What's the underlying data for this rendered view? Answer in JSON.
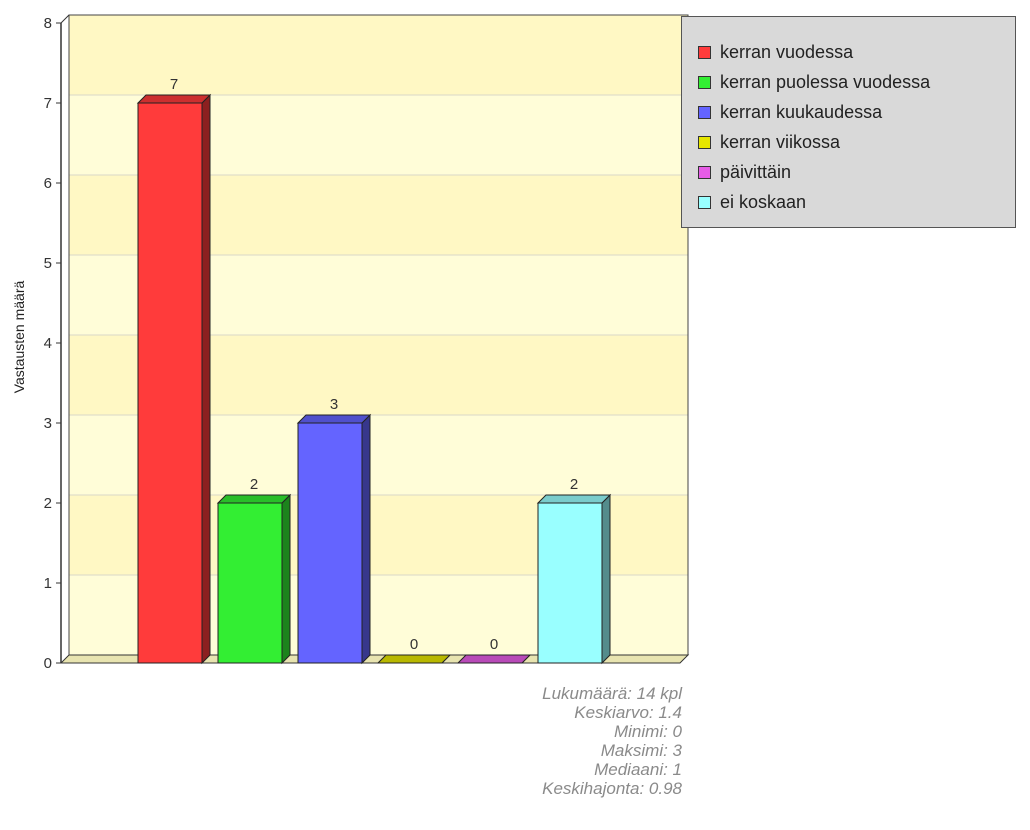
{
  "chart_data": {
    "type": "bar",
    "ylabel": "Vastausten määrä",
    "ylim": [
      0,
      8
    ],
    "yticks": [
      0,
      1,
      2,
      3,
      4,
      5,
      6,
      7,
      8
    ],
    "grid": true,
    "legend_placement": "right",
    "categories": [
      "kerran vuodessa",
      "kerran puolessa vuodessa",
      "kerran kuukaudessa",
      "kerran viikossa",
      "päivittäin",
      "ei koskaan"
    ],
    "values": [
      7,
      2,
      3,
      0,
      0,
      2
    ],
    "colors": [
      "#ff3b3b",
      "#33ee33",
      "#6464ff",
      "#e6e600",
      "#e65ce6",
      "#99ffff"
    ]
  },
  "stats": {
    "count": "Lukumäärä: 14 kpl",
    "mean": "Keskiarvo: 1.4",
    "min": "Minimi: 0",
    "max": "Maksimi: 3",
    "median": "Mediaani: 1",
    "stddev": "Keskihajonta: 0.98"
  }
}
